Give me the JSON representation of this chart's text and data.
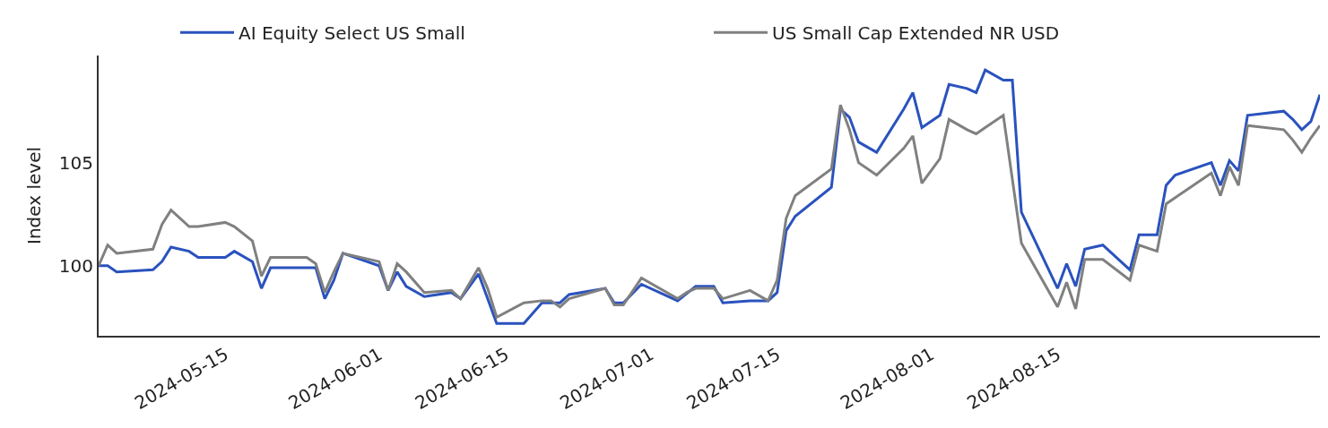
{
  "chart_data": {
    "type": "line",
    "ylabel": "Index level",
    "xlim": [
      "2024-05-01",
      "2024-09-13"
    ],
    "xticks": [
      "2024-05-15",
      "2024-06-01",
      "2024-06-15",
      "2024-07-01",
      "2024-07-15",
      "2024-08-01",
      "2024-08-15"
    ],
    "ylim": [
      96.6,
      110.2
    ],
    "yticks": [
      100,
      105
    ],
    "legend": "top",
    "marker": "none",
    "line_style": "solid",
    "series": [
      {
        "name": "AI Equity Select US Small",
        "color": "#2a52be",
        "x": [
          "2024-05-01",
          "2024-05-02",
          "2024-05-03",
          "2024-05-07",
          "2024-05-08",
          "2024-05-09",
          "2024-05-11",
          "2024-05-12",
          "2024-05-15",
          "2024-05-16",
          "2024-05-18",
          "2024-05-19",
          "2024-05-20",
          "2024-05-24",
          "2024-05-25",
          "2024-05-26",
          "2024-05-27",
          "2024-05-28",
          "2024-06-01",
          "2024-06-02",
          "2024-06-03",
          "2024-06-04",
          "2024-06-06",
          "2024-06-09",
          "2024-06-10",
          "2024-06-12",
          "2024-06-13",
          "2024-06-14",
          "2024-06-17",
          "2024-06-19",
          "2024-06-21",
          "2024-06-22",
          "2024-06-26",
          "2024-06-27",
          "2024-06-28",
          "2024-06-30",
          "2024-07-04",
          "2024-07-06",
          "2024-07-08",
          "2024-07-09",
          "2024-07-12",
          "2024-07-14",
          "2024-07-15",
          "2024-07-16",
          "2024-07-17",
          "2024-07-21",
          "2024-07-22",
          "2024-07-23",
          "2024-07-24",
          "2024-07-26",
          "2024-07-29",
          "2024-07-30",
          "2024-07-31",
          "2024-08-02",
          "2024-08-03",
          "2024-08-05",
          "2024-08-06",
          "2024-08-07",
          "2024-08-09",
          "2024-08-10",
          "2024-08-11",
          "2024-08-15",
          "2024-08-16",
          "2024-08-17",
          "2024-08-18",
          "2024-08-20",
          "2024-08-23",
          "2024-08-24",
          "2024-08-26",
          "2024-08-27",
          "2024-08-28",
          "2024-09-01",
          "2024-09-02",
          "2024-09-03",
          "2024-09-04",
          "2024-09-05",
          "2024-09-09",
          "2024-09-10",
          "2024-09-11",
          "2024-09-12",
          "2024-09-13"
        ],
        "values": [
          100.0,
          100.0,
          99.7,
          99.8,
          100.2,
          100.9,
          100.7,
          100.4,
          100.4,
          100.7,
          100.2,
          98.9,
          99.9,
          99.9,
          99.9,
          98.4,
          99.3,
          100.6,
          100.0,
          98.8,
          99.7,
          99.0,
          98.5,
          98.7,
          98.4,
          99.6,
          98.4,
          97.2,
          97.2,
          98.2,
          98.2,
          98.6,
          98.9,
          98.2,
          98.2,
          99.1,
          98.3,
          99.0,
          99.0,
          98.2,
          98.3,
          98.3,
          98.7,
          101.7,
          102.4,
          103.8,
          107.6,
          107.2,
          106.0,
          105.5,
          107.6,
          108.4,
          106.7,
          107.3,
          108.8,
          108.6,
          108.4,
          109.5,
          109.0,
          109.0,
          102.6,
          98.9,
          100.1,
          99.0,
          100.8,
          101.0,
          99.8,
          101.5,
          101.5,
          103.9,
          104.4,
          105.0,
          103.9,
          105.1,
          104.6,
          107.3,
          107.5,
          107.1,
          106.6,
          107.0,
          108.3
        ]
      },
      {
        "name": "US Small Cap Extended NR USD",
        "color": "#808080",
        "x": [
          "2024-05-01",
          "2024-05-02",
          "2024-05-03",
          "2024-05-07",
          "2024-05-08",
          "2024-05-09",
          "2024-05-11",
          "2024-05-12",
          "2024-05-15",
          "2024-05-16",
          "2024-05-18",
          "2024-05-19",
          "2024-05-20",
          "2024-05-24",
          "2024-05-25",
          "2024-05-26",
          "2024-05-27",
          "2024-05-28",
          "2024-06-01",
          "2024-06-02",
          "2024-06-03",
          "2024-06-04",
          "2024-06-06",
          "2024-06-09",
          "2024-06-10",
          "2024-06-12",
          "2024-06-13",
          "2024-06-14",
          "2024-06-17",
          "2024-06-19",
          "2024-06-20",
          "2024-06-21",
          "2024-06-22",
          "2024-06-26",
          "2024-06-27",
          "2024-06-28",
          "2024-06-30",
          "2024-07-04",
          "2024-07-05",
          "2024-07-06",
          "2024-07-08",
          "2024-07-09",
          "2024-07-12",
          "2024-07-14",
          "2024-07-15",
          "2024-07-16",
          "2024-07-17",
          "2024-07-21",
          "2024-07-22",
          "2024-07-23",
          "2024-07-24",
          "2024-07-26",
          "2024-07-29",
          "2024-07-30",
          "2024-07-31",
          "2024-08-02",
          "2024-08-03",
          "2024-08-05",
          "2024-08-06",
          "2024-08-07",
          "2024-08-09",
          "2024-08-11",
          "2024-08-15",
          "2024-08-16",
          "2024-08-17",
          "2024-08-18",
          "2024-08-20",
          "2024-08-23",
          "2024-08-24",
          "2024-08-26",
          "2024-08-27",
          "2024-08-28",
          "2024-09-01",
          "2024-09-02",
          "2024-09-03",
          "2024-09-04",
          "2024-09-05",
          "2024-09-09",
          "2024-09-10",
          "2024-09-11",
          "2024-09-12",
          "2024-09-13"
        ],
        "values": [
          100.0,
          101.0,
          100.6,
          100.8,
          102.0,
          102.7,
          101.9,
          101.9,
          102.1,
          101.9,
          101.2,
          99.5,
          100.4,
          100.4,
          100.1,
          98.7,
          99.7,
          100.6,
          100.2,
          98.8,
          100.1,
          99.7,
          98.7,
          98.8,
          98.4,
          99.9,
          98.9,
          97.5,
          98.2,
          98.3,
          98.3,
          98.0,
          98.4,
          98.9,
          98.1,
          98.1,
          99.4,
          98.4,
          98.7,
          98.9,
          98.9,
          98.4,
          98.8,
          98.3,
          99.3,
          102.3,
          103.4,
          104.7,
          107.8,
          106.6,
          105.0,
          104.4,
          105.7,
          106.3,
          104.0,
          105.2,
          107.1,
          106.6,
          106.4,
          106.7,
          107.3,
          101.1,
          98.0,
          99.2,
          97.9,
          100.3,
          100.3,
          99.3,
          101.0,
          100.7,
          103.0,
          103.3,
          104.5,
          103.4,
          104.8,
          103.9,
          106.8,
          106.6,
          106.1,
          105.5,
          106.2,
          106.8
        ]
      }
    ]
  }
}
